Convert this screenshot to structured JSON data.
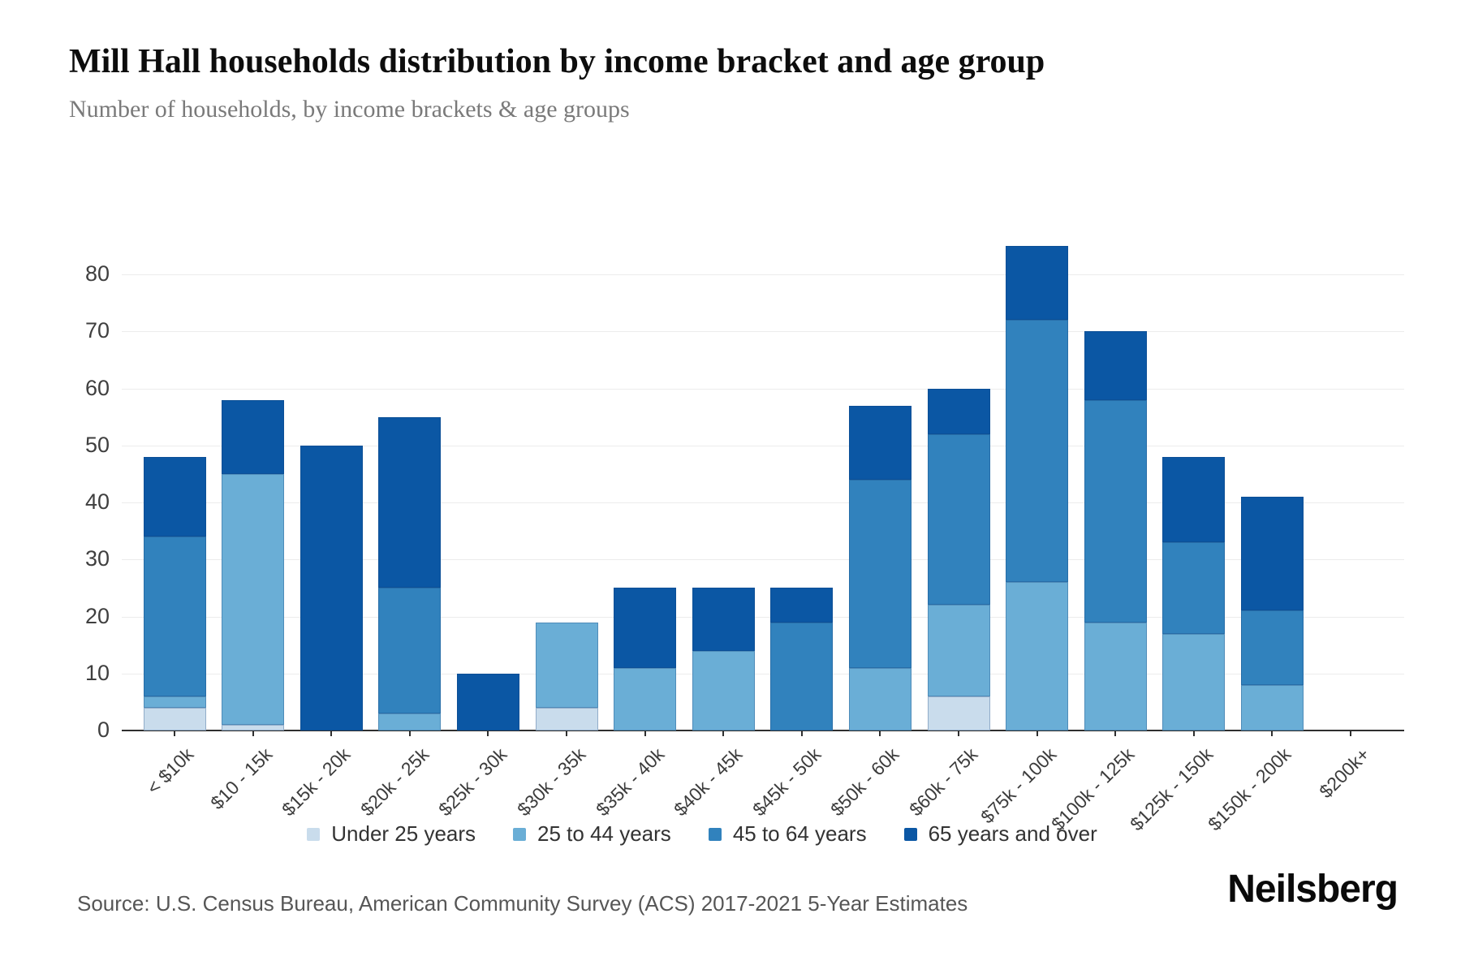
{
  "header": {
    "title": "Mill Hall households distribution by income bracket and age group",
    "subtitle": "Number of households, by income brackets & age groups"
  },
  "footer": {
    "source": "Source: U.S. Census Bureau, American Community Survey (ACS) 2017-2021 5-Year Estimates",
    "logo": "Neilsberg"
  },
  "colors": {
    "under_25": "#c9dcec",
    "age_25_44": "#6aaed6",
    "age_45_64": "#3182bd",
    "age_65_over": "#0b57a4",
    "gridline": "#ececec",
    "axis": "#2f2f2f"
  },
  "chart_data": {
    "type": "bar",
    "stacked": true,
    "title": "Mill Hall households distribution by income bracket and age group",
    "xlabel": "",
    "ylabel": "Number of households",
    "ylim": [
      0,
      80
    ],
    "ytick_step": 10,
    "yticks": [
      0,
      10,
      20,
      30,
      40,
      50,
      60,
      70,
      80
    ],
    "grid": true,
    "legend_position": "bottom",
    "categories": [
      "< $10k",
      "$10 - 15k",
      "$15k - 20k",
      "$20k - 25k",
      "$25k - 30k",
      "$30k - 35k",
      "$35k - 40k",
      "$40k - 45k",
      "$45k - 50k",
      "$50k - 60k",
      "$60k - 75k",
      "$75k - 100k",
      "$100k - 125k",
      "$125k - 150k",
      "$150k - 200k",
      "$200k+"
    ],
    "series": [
      {
        "name": "Under 25 years",
        "color": "#c9dcec",
        "values": [
          4,
          1,
          0,
          0,
          0,
          4,
          0,
          0,
          0,
          0,
          6,
          0,
          0,
          0,
          0,
          0
        ]
      },
      {
        "name": "25 to 44 years",
        "color": "#6aaed6",
        "values": [
          2,
          44,
          0,
          3,
          0,
          15,
          11,
          14,
          0,
          11,
          16,
          26,
          19,
          17,
          8,
          0
        ]
      },
      {
        "name": "45 to 64 years",
        "color": "#3182bd",
        "values": [
          28,
          0,
          0,
          22,
          0,
          0,
          0,
          0,
          19,
          33,
          30,
          46,
          39,
          16,
          13,
          0
        ]
      },
      {
        "name": "65 years and over",
        "color": "#0b57a4",
        "values": [
          14,
          13,
          50,
          30,
          10,
          0,
          14,
          11,
          6,
          13,
          8,
          13,
          12,
          15,
          20,
          0
        ]
      }
    ],
    "totals": [
      48,
      58,
      50,
      55,
      10,
      19,
      25,
      25,
      25,
      57,
      60,
      85,
      70,
      48,
      41,
      0
    ]
  }
}
